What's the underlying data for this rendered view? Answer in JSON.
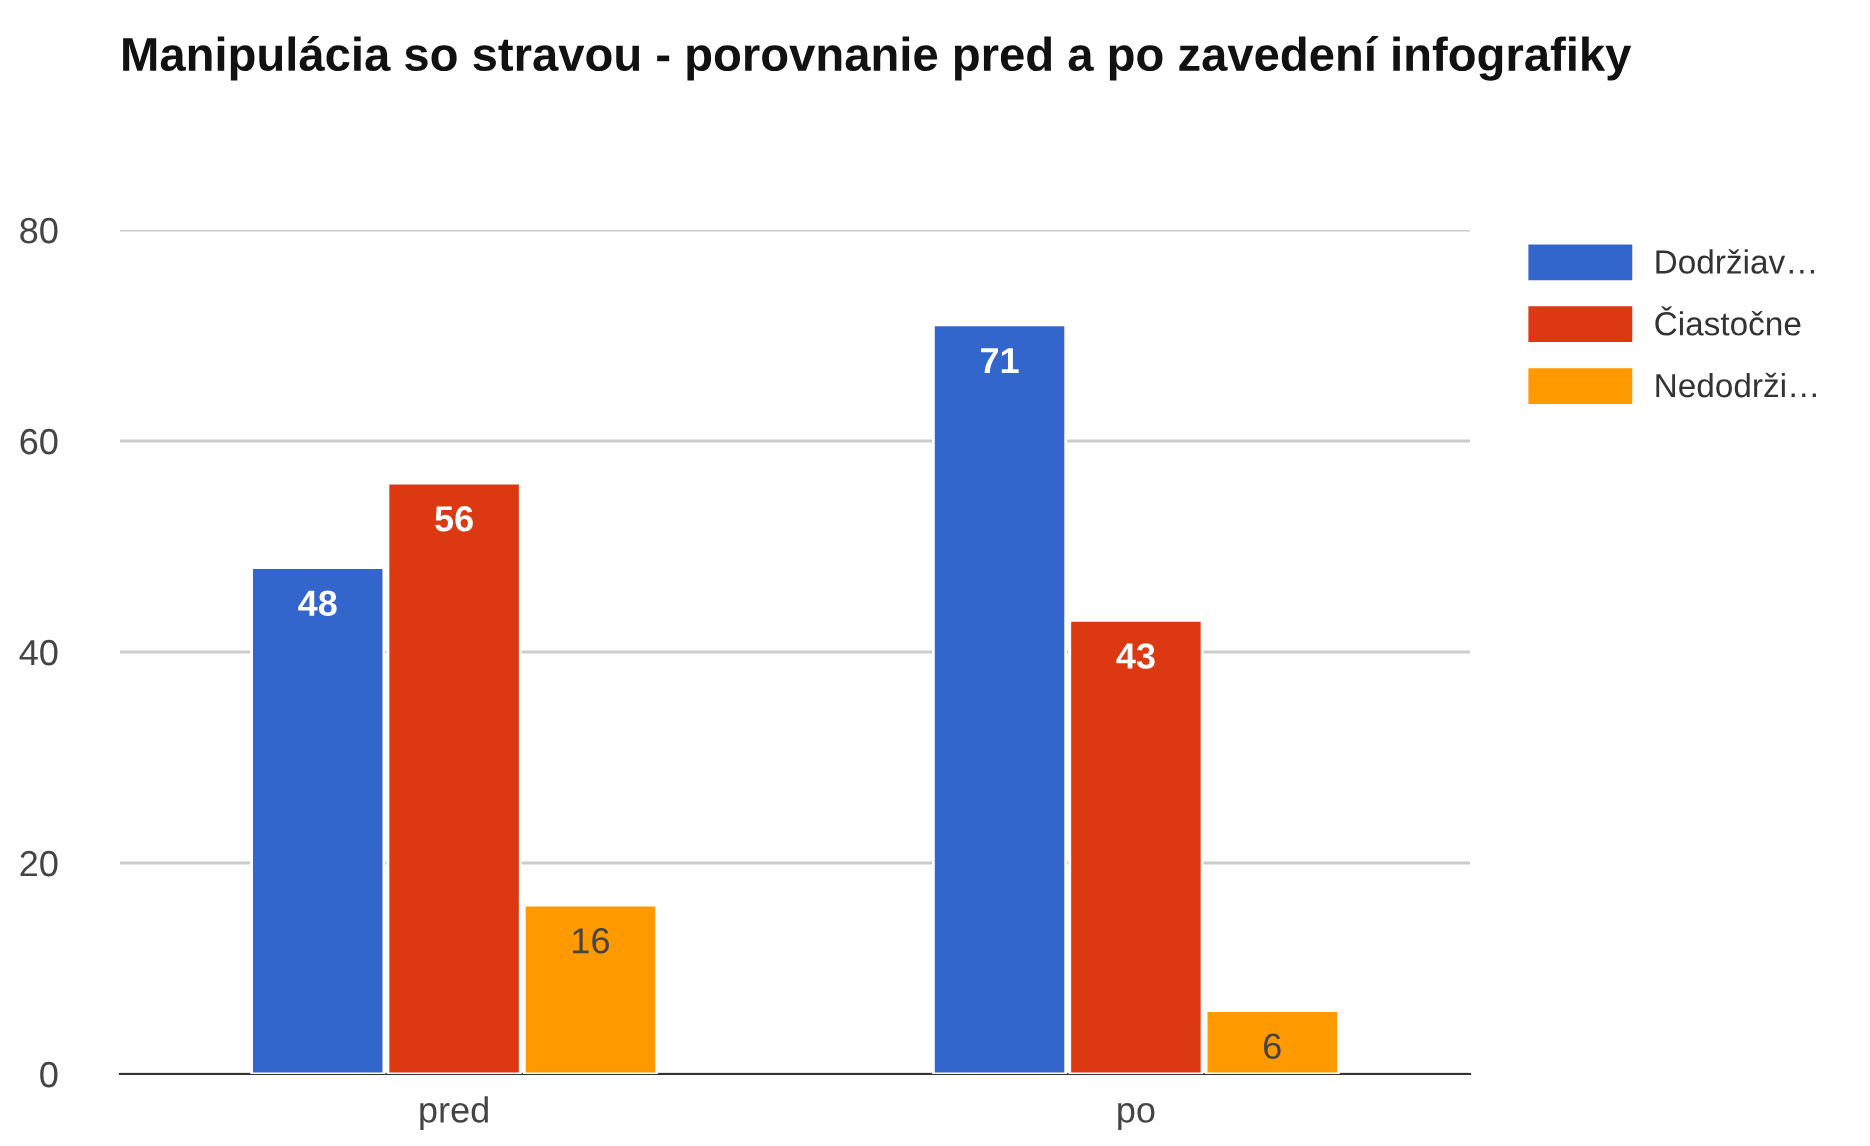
{
  "chart_data": {
    "type": "bar",
    "title": "Manipulácia so stravou - porovnanie pred a po zavedení infografiky",
    "categories": [
      "pred",
      "po"
    ],
    "series": [
      {
        "name": "Dodržiav…",
        "color": "#3366cc",
        "values": [
          48,
          71
        ]
      },
      {
        "name": "Čiastočne",
        "color": "#dc3912",
        "values": [
          56,
          43
        ]
      },
      {
        "name": "Nedodrži…",
        "color": "#ff9900",
        "values": [
          16,
          6
        ]
      }
    ],
    "ylim": [
      0,
      80
    ],
    "yticks": [
      0,
      20,
      40,
      60,
      80
    ],
    "grid": "y",
    "legend": "right",
    "data_labels": true
  }
}
